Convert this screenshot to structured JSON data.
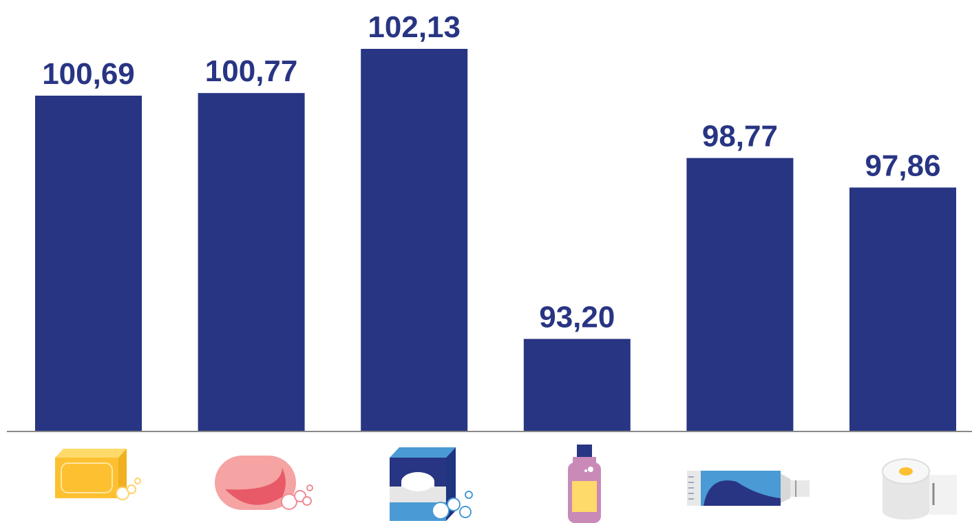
{
  "chart_data": {
    "type": "bar",
    "title": "",
    "xlabel": "",
    "ylabel": "",
    "categories": [
      "bar-soap-icon",
      "pink-soap-icon",
      "detergent-box-icon",
      "shampoo-bottle-icon",
      "toothpaste-tube-icon",
      "toilet-paper-icon"
    ],
    "values": [
      100.69,
      100.77,
      102.13,
      93.2,
      98.77,
      97.86
    ],
    "value_labels": [
      "100,69",
      "100,77",
      "102,13",
      "93,20",
      "98,77",
      "97,86"
    ],
    "ylim": [
      90.35,
      102.13
    ],
    "grid": false,
    "legend": "none",
    "bar_color": "#283583",
    "baseline_color": "#888888"
  }
}
